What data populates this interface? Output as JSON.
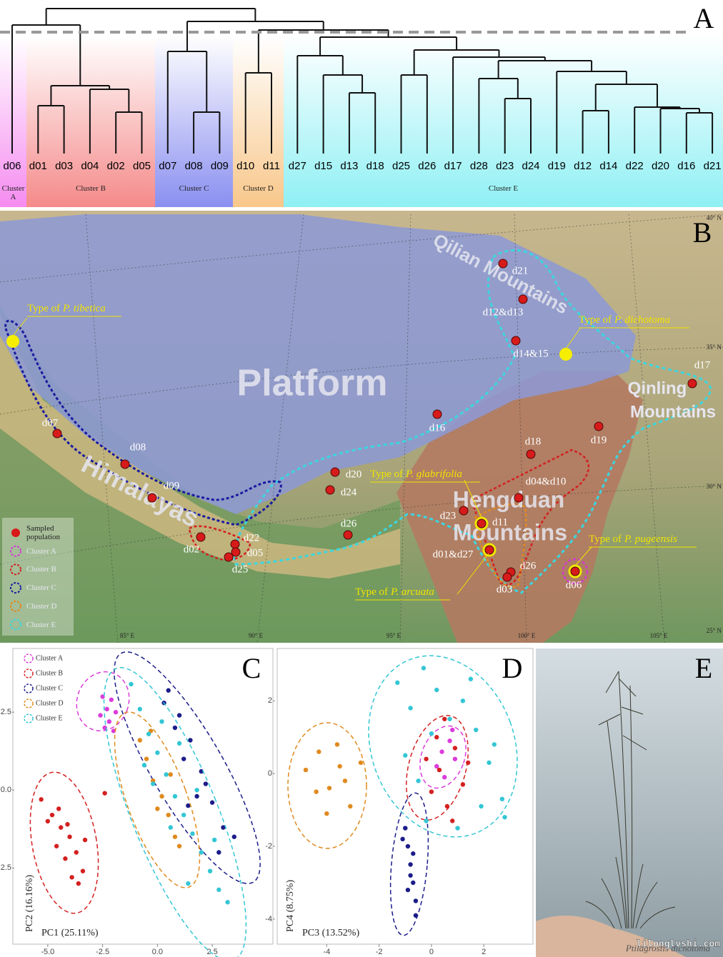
{
  "panel_a": {
    "label": "A",
    "leaves": [
      "d06",
      "d01",
      "d03",
      "d04",
      "d02",
      "d05",
      "d07",
      "d08",
      "d09",
      "d10",
      "d11",
      "d27",
      "d15",
      "d13",
      "d18",
      "d25",
      "d26",
      "d17",
      "d28",
      "d23",
      "d24",
      "d19",
      "d12",
      "d14",
      "d22",
      "d20",
      "d16",
      "d21"
    ],
    "clusters": [
      "Cluster A",
      "Cluster B",
      "Cluster C",
      "Cluster D",
      "Cluster E"
    ]
  },
  "panel_b": {
    "label": "B",
    "platform": "Platform",
    "qilian": "Qilian Mountains",
    "himalayas": "Himalayas",
    "qinling": [
      "Qinling",
      "Mountains"
    ],
    "hengduan": [
      "Hengduan",
      "Mountains"
    ],
    "sites": [
      "d21",
      "d12&d13",
      "d14&15",
      "d17",
      "d16",
      "d19",
      "d18",
      "d07",
      "d08",
      "d09",
      "d20",
      "d24",
      "d26",
      "d02",
      "d22",
      "d05",
      "d25",
      "d04&d10",
      "d23",
      "d11",
      "d01&d27",
      "d26",
      "d03",
      "d06"
    ],
    "types": [
      {
        "prefix": "Type of",
        "species": "P. tibetica"
      },
      {
        "prefix": "Type of",
        "species": "P. dichotoma"
      },
      {
        "prefix": "Type of",
        "species": "P. glabrifolia"
      },
      {
        "prefix": "Type of",
        "species": "P. pugeensis"
      },
      {
        "prefix": "Type of",
        "species": "P. arcuata"
      }
    ],
    "legend": [
      "Sampled population",
      "Cluster A",
      "Cluster B",
      "Cluster C",
      "Cluster D",
      "Cluster E"
    ],
    "latitudes": [
      "40° N",
      "35° N",
      "30° N",
      "25° N"
    ],
    "longitudes": [
      "85° E",
      "90° E",
      "95° E",
      "100° E",
      "105° E"
    ]
  },
  "panel_e": {
    "label": "E",
    "caption": "Ptilagrostis dichotoma",
    "watermark": "lilonglvshi.com"
  },
  "chart_data": [
    {
      "type": "scatter",
      "panel": "C",
      "x_label": "PC1 (25.11%)",
      "y_label": "PC2 (16.16%)",
      "xlim": [
        -6.2,
        5.2
      ],
      "ylim": [
        -4.9,
        4.5
      ],
      "xticks": [
        {
          "value": -5,
          "label": "-5.0"
        },
        -2.5,
        {
          "value": 0,
          "label": "0.0"
        },
        2.5
      ],
      "yticks": [
        -2.5,
        {
          "value": 0,
          "label": "0.0"
        },
        2.5
      ],
      "legend": "top-left",
      "series": [
        {
          "name": "Cluster A",
          "color": "#dc3bdc",
          "x": [
            -2.6,
            -2.3,
            -2.1,
            -2.4,
            -1.9,
            -2.2,
            -2.5,
            -2.0
          ],
          "values": [
            2.4,
            2.6,
            2.9,
            2.0,
            2.5,
            2.2,
            3.0,
            1.9
          ]
        },
        {
          "name": "Cluster B",
          "color": "#d42020",
          "x": [
            -5.3,
            -4.8,
            -4.4,
            -4.0,
            -3.7,
            -3.4,
            -5.0,
            -4.6,
            -4.2,
            -3.9,
            -3.6,
            -4.5,
            -4.1,
            -3.3,
            -2.4
          ],
          "values": [
            -0.3,
            -0.8,
            -1.2,
            -1.5,
            -2.0,
            -2.6,
            -1.0,
            -1.8,
            -2.2,
            -2.8,
            -3.0,
            -0.6,
            -1.1,
            -1.6,
            -0.1
          ]
        },
        {
          "name": "Cluster C",
          "color": "#1c1c8a",
          "x": [
            0.5,
            1.0,
            1.5,
            2.0,
            2.5,
            3.0,
            1.2,
            0.8,
            1.8,
            2.8,
            3.5,
            0.3,
            1.4,
            2.2
          ],
          "values": [
            3.2,
            2.4,
            1.6,
            0.6,
            -0.4,
            -1.2,
            1.0,
            2.0,
            -0.2,
            -2.0,
            -1.5,
            2.8,
            -0.5,
            0.2
          ]
        },
        {
          "name": "Cluster D",
          "color": "#e08a1e",
          "x": [
            -0.8,
            -0.5,
            -0.2,
            0.2,
            0.5,
            0.8,
            -0.3,
            0.0,
            0.6,
            1.0
          ],
          "values": [
            1.6,
            1.0,
            0.3,
            -0.2,
            -0.8,
            -1.5,
            1.9,
            -0.6,
            0.5,
            -1.8
          ]
        },
        {
          "name": "Cluster E",
          "color": "#33c6d4",
          "x": [
            -1.2,
            -0.8,
            -0.4,
            0,
            0.4,
            0.8,
            1.2,
            1.6,
            2.0,
            2.4,
            2.8,
            3.2,
            -0.6,
            0.2,
            1.0,
            1.8,
            2.6,
            1.4,
            0.6,
            -0.2
          ],
          "values": [
            3.4,
            2.6,
            1.8,
            1.2,
            0.5,
            -0.2,
            -0.8,
            -1.4,
            -2.0,
            -2.6,
            -3.2,
            -3.6,
            0.8,
            2.2,
            1.5,
            0.0,
            -1.6,
            -3.0,
            -1.2,
            0.2
          ]
        }
      ]
    },
    {
      "type": "scatter",
      "panel": "D",
      "x_label": "PC3 (13.52%)",
      "y_label": "PC4 (8.75%)",
      "xlim": [
        -5.7,
        3.85
      ],
      "ylim": [
        -4.65,
        3.4
      ],
      "xticks": [
        -4,
        -2,
        0,
        2
      ],
      "yticks": [
        -4,
        -2,
        0,
        2
      ],
      "series": [
        {
          "name": "Cluster A",
          "color": "#dc3bdc",
          "x": [
            0.4,
            0.7,
            0.2,
            0.9,
            0.5,
            0.8
          ],
          "values": [
            0.6,
            0.9,
            0.2,
            0.4,
            -0.1,
            1.2
          ]
        },
        {
          "name": "Cluster B",
          "color": "#d42020",
          "x": [
            0.0,
            0.3,
            0.6,
            0.9,
            1.2,
            0.2,
            0.8,
            1.4,
            0.5,
            -0.2
          ],
          "values": [
            -0.5,
            0.1,
            -0.9,
            0.7,
            -0.3,
            1.0,
            -1.3,
            0.3,
            1.5,
            0.4
          ]
        },
        {
          "name": "Cluster C",
          "color": "#1c1c8a",
          "x": [
            -1.0,
            -0.9,
            -0.8,
            -0.7,
            -0.6,
            -1.1,
            -0.8,
            -0.6,
            -0.9,
            -0.7
          ],
          "values": [
            -1.5,
            -2.0,
            -2.5,
            -3.0,
            -3.5,
            -1.8,
            -2.8,
            -3.9,
            -3.2,
            -2.2
          ]
        },
        {
          "name": "Cluster D",
          "color": "#e08a1e",
          "x": [
            -4.8,
            -4.3,
            -3.9,
            -3.5,
            -3.1,
            -2.7,
            -4.0,
            -3.6,
            -3.3,
            -4.4
          ],
          "values": [
            0.1,
            0.6,
            -0.4,
            0.2,
            -0.9,
            0.3,
            -1.1,
            0.8,
            -0.2,
            -0.5
          ]
        },
        {
          "name": "Cluster E",
          "color": "#33c6d4",
          "x": [
            -1.3,
            -0.8,
            -0.3,
            0.2,
            0.7,
            1.2,
            1.7,
            2.2,
            2.7,
            -1.0,
            -0.5,
            1.0,
            1.9,
            2.4,
            0.0,
            -0.2,
            1.5,
            2.8
          ],
          "values": [
            2.5,
            1.8,
            2.9,
            2.3,
            1.5,
            2.0,
            1.2,
            0.3,
            -0.7,
            0.5,
            -0.2,
            -1.5,
            -0.9,
            0.8,
            1.1,
            -1.3,
            2.6,
            -1.2
          ]
        }
      ]
    }
  ]
}
